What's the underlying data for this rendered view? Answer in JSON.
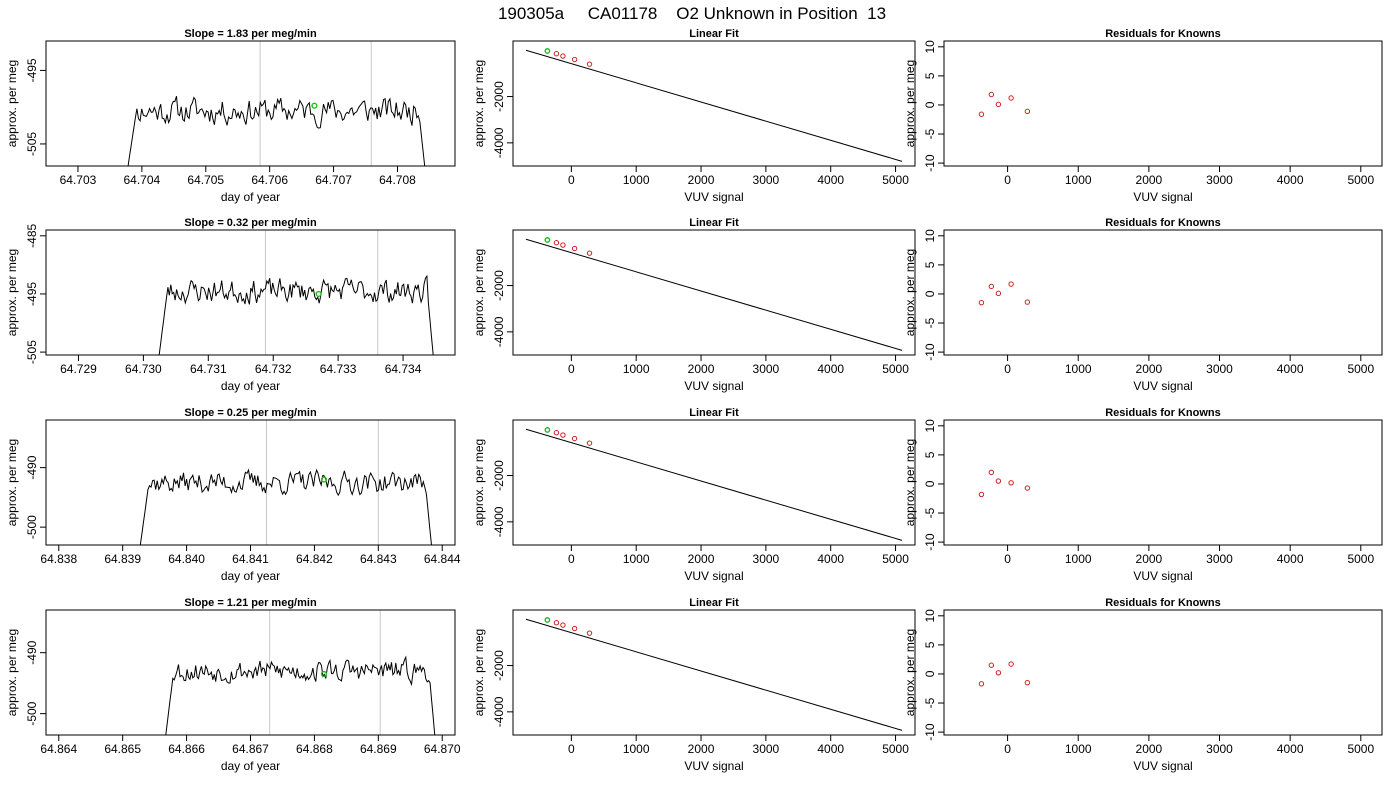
{
  "page_title": "190305a     CA01178    O2 Unknown in Position  13",
  "colors": {
    "trace": "#000000",
    "gridline": "#c8c8c8",
    "unknown_point": "#22bb22",
    "residual_point": "#cc2222",
    "known_point": "#cc2222"
  },
  "chart_data": [
    {
      "type": "line",
      "row": 1,
      "title": "Slope =  1.83  per meg/min",
      "xlabel": "day of year",
      "ylabel": "approx. per meg",
      "xlim": [
        64.7025,
        64.7089
      ],
      "ylim": [
        -508,
        -491
      ],
      "xticks": [
        64.703,
        64.704,
        64.705,
        64.706,
        64.707,
        64.708
      ],
      "xtick_labels": [
        "64.703",
        "64.704",
        "64.705",
        "64.706",
        "64.707",
        "64.708"
      ],
      "yticks": [
        -505,
        -495
      ],
      "ytick_labels": [
        "-505",
        "-495"
      ],
      "vlines": [
        64.70585,
        64.70759
      ],
      "trace_start": 64.70375,
      "trace_end": 64.70845,
      "baseline": -500.5,
      "amplitude": 1.9,
      "seed": 11,
      "unknown_points": [
        {
          "x": 64.7067,
          "y": -499.8
        }
      ]
    },
    {
      "type": "scatter",
      "row": 1,
      "title": "Linear Fit",
      "xlabel": "VUV signal",
      "ylabel": "approx. per meg",
      "xlim": [
        -900,
        5300
      ],
      "ylim": [
        -5000,
        400
      ],
      "xticks": [
        0,
        1000,
        2000,
        3000,
        4000,
        5000
      ],
      "xtick_labels": [
        "0",
        "1000",
        "2000",
        "3000",
        "4000",
        "5000"
      ],
      "yticks": [
        -4000,
        -2000
      ],
      "ytick_labels": [
        "-4000",
        "-2000"
      ],
      "fit_line": [
        [
          -700,
          0
        ],
        [
          5100,
          -4800
        ]
      ],
      "known_points": [
        [
          -230,
          -150
        ],
        [
          -130,
          -250
        ],
        [
          50,
          -400
        ],
        [
          280,
          -600
        ]
      ],
      "unknown_points": [
        [
          -370,
          -30
        ]
      ]
    },
    {
      "type": "scatter",
      "row": 1,
      "title": "Residuals for Knowns",
      "xlabel": "VUV signal",
      "ylabel": "approx. per meg",
      "xlim": [
        -900,
        5300
      ],
      "ylim": [
        -10.5,
        11
      ],
      "xticks": [
        0,
        1000,
        2000,
        3000,
        4000,
        5000
      ],
      "xtick_labels": [
        "0",
        "1000",
        "2000",
        "3000",
        "4000",
        "5000"
      ],
      "yticks": [
        -10,
        -5,
        0,
        5,
        10
      ],
      "ytick_labels": [
        "-10",
        "-5",
        "0",
        "5",
        "10"
      ],
      "residuals": [
        [
          -370,
          -1.6
        ],
        [
          -230,
          1.8
        ],
        [
          -130,
          0.1
        ],
        [
          50,
          1.2
        ],
        [
          280,
          -1.1
        ]
      ]
    },
    {
      "type": "line",
      "row": 2,
      "title": "Slope =  0.32  per meg/min",
      "xlabel": "day of year",
      "ylabel": "approx. per meg",
      "xlim": [
        64.7285,
        64.7348
      ],
      "ylim": [
        -505.5,
        -484
      ],
      "xticks": [
        64.729,
        64.73,
        64.731,
        64.732,
        64.733,
        64.734
      ],
      "xtick_labels": [
        "64.729",
        "64.730",
        "64.731",
        "64.732",
        "64.733",
        "64.734"
      ],
      "yticks": [
        -505,
        -495,
        -485
      ],
      "ytick_labels": [
        "-505",
        "-495",
        "-485"
      ],
      "vlines": [
        64.73188,
        64.73361
      ],
      "trace_start": 64.73022,
      "trace_end": 64.73448,
      "baseline": -494.5,
      "amplitude": 2.2,
      "seed": 23,
      "unknown_points": [
        {
          "x": 64.7327,
          "y": -495.0
        }
      ]
    },
    {
      "type": "scatter",
      "row": 2,
      "title": "Linear Fit",
      "xlabel": "VUV signal",
      "ylabel": "approx. per meg",
      "xlim": [
        -900,
        5300
      ],
      "ylim": [
        -5000,
        400
      ],
      "xticks": [
        0,
        1000,
        2000,
        3000,
        4000,
        5000
      ],
      "xtick_labels": [
        "0",
        "1000",
        "2000",
        "3000",
        "4000",
        "5000"
      ],
      "yticks": [
        -4000,
        -2000
      ],
      "ytick_labels": [
        "-4000",
        "-2000"
      ],
      "fit_line": [
        [
          -700,
          0
        ],
        [
          5100,
          -4800
        ]
      ],
      "known_points": [
        [
          -230,
          -150
        ],
        [
          -130,
          -250
        ],
        [
          50,
          -400
        ],
        [
          280,
          -600
        ]
      ],
      "unknown_points": [
        [
          -370,
          -30
        ]
      ]
    },
    {
      "type": "scatter",
      "row": 2,
      "title": "Residuals for Knowns",
      "xlabel": "VUV signal",
      "ylabel": "approx. per meg",
      "xlim": [
        -900,
        5300
      ],
      "ylim": [
        -10.5,
        11
      ],
      "xticks": [
        0,
        1000,
        2000,
        3000,
        4000,
        5000
      ],
      "xtick_labels": [
        "0",
        "1000",
        "2000",
        "3000",
        "4000",
        "5000"
      ],
      "yticks": [
        -10,
        -5,
        0,
        5,
        10
      ],
      "ytick_labels": [
        "-10",
        "-5",
        "0",
        "5",
        "10"
      ],
      "residuals": [
        [
          -370,
          -1.5
        ],
        [
          -230,
          1.3
        ],
        [
          -130,
          0.1
        ],
        [
          50,
          1.7
        ],
        [
          280,
          -1.4
        ]
      ]
    },
    {
      "type": "line",
      "row": 3,
      "title": "Slope =  0.25  per meg/min",
      "xlabel": "day of year",
      "ylabel": "approx. per meg",
      "xlim": [
        64.8378,
        64.8442
      ],
      "ylim": [
        -503,
        -482
      ],
      "xticks": [
        64.838,
        64.839,
        64.84,
        64.841,
        64.842,
        64.843,
        64.844
      ],
      "xtick_labels": [
        "64.838",
        "64.839",
        "64.840",
        "64.841",
        "64.842",
        "64.843",
        "64.844"
      ],
      "yticks": [
        -500,
        -490
      ],
      "ytick_labels": [
        "-500",
        "-490"
      ],
      "vlines": [
        64.84125,
        64.843
      ],
      "trace_start": 64.83925,
      "trace_end": 64.84385,
      "baseline": -492.5,
      "amplitude": 2.0,
      "seed": 37,
      "unknown_points": [
        {
          "x": 64.84215,
          "y": -492.0
        }
      ]
    },
    {
      "type": "scatter",
      "row": 3,
      "title": "Linear Fit",
      "xlabel": "VUV signal",
      "ylabel": "approx. per meg",
      "xlim": [
        -900,
        5300
      ],
      "ylim": [
        -5000,
        400
      ],
      "xticks": [
        0,
        1000,
        2000,
        3000,
        4000,
        5000
      ],
      "xtick_labels": [
        "0",
        "1000",
        "2000",
        "3000",
        "4000",
        "5000"
      ],
      "yticks": [
        -4000,
        -2000
      ],
      "ytick_labels": [
        "-4000",
        "-2000"
      ],
      "fit_line": [
        [
          -700,
          0
        ],
        [
          5100,
          -4800
        ]
      ],
      "known_points": [
        [
          -230,
          -150
        ],
        [
          -130,
          -250
        ],
        [
          50,
          -400
        ],
        [
          280,
          -600
        ]
      ],
      "unknown_points": [
        [
          -370,
          -30
        ]
      ]
    },
    {
      "type": "scatter",
      "row": 3,
      "title": "Residuals for Knowns",
      "xlabel": "VUV signal",
      "ylabel": "approx. per meg",
      "xlim": [
        -900,
        5300
      ],
      "ylim": [
        -10.5,
        11
      ],
      "xticks": [
        0,
        1000,
        2000,
        3000,
        4000,
        5000
      ],
      "xtick_labels": [
        "0",
        "1000",
        "2000",
        "3000",
        "4000",
        "5000"
      ],
      "yticks": [
        -10,
        -5,
        0,
        5,
        10
      ],
      "ytick_labels": [
        "-10",
        "-5",
        "0",
        "5",
        "10"
      ],
      "residuals": [
        [
          -370,
          -1.8
        ],
        [
          -230,
          2.0
        ],
        [
          -130,
          0.5
        ],
        [
          50,
          0.2
        ],
        [
          280,
          -0.7
        ]
      ]
    },
    {
      "type": "line",
      "row": 4,
      "title": "Slope =  1.21  per meg/min",
      "xlabel": "day of year",
      "ylabel": "approx. per meg",
      "xlim": [
        64.8638,
        64.8702
      ],
      "ylim": [
        -503.5,
        -483
      ],
      "xticks": [
        64.864,
        64.865,
        64.866,
        64.867,
        64.868,
        64.869,
        64.87
      ],
      "xtick_labels": [
        "64.864",
        "64.865",
        "64.866",
        "64.867",
        "64.868",
        "64.869",
        "64.870"
      ],
      "yticks": [
        -500,
        -490
      ],
      "ytick_labels": [
        "-500",
        "-490"
      ],
      "vlines": [
        64.8673,
        64.86903
      ],
      "trace_start": 64.86565,
      "trace_end": 64.8699,
      "baseline": -493.0,
      "amplitude": 1.9,
      "seed": 53,
      "unknown_points": [
        {
          "x": 64.86815,
          "y": -493.5
        }
      ]
    },
    {
      "type": "scatter",
      "row": 4,
      "title": "Linear Fit",
      "xlabel": "VUV signal",
      "ylabel": "approx. per meg",
      "xlim": [
        -900,
        5300
      ],
      "ylim": [
        -5000,
        400
      ],
      "xticks": [
        0,
        1000,
        2000,
        3000,
        4000,
        5000
      ],
      "xtick_labels": [
        "0",
        "1000",
        "2000",
        "3000",
        "4000",
        "5000"
      ],
      "yticks": [
        -4000,
        -2000
      ],
      "ytick_labels": [
        "-4000",
        "-2000"
      ],
      "fit_line": [
        [
          -700,
          0
        ],
        [
          5100,
          -4800
        ]
      ],
      "known_points": [
        [
          -230,
          -150
        ],
        [
          -130,
          -250
        ],
        [
          50,
          -400
        ],
        [
          280,
          -600
        ]
      ],
      "unknown_points": [
        [
          -370,
          -30
        ]
      ]
    },
    {
      "type": "scatter",
      "row": 4,
      "title": "Residuals for Knowns",
      "xlabel": "VUV signal",
      "ylabel": "approx. per meg",
      "xlim": [
        -900,
        5300
      ],
      "ylim": [
        -10.5,
        11
      ],
      "xticks": [
        0,
        1000,
        2000,
        3000,
        4000,
        5000
      ],
      "xtick_labels": [
        "0",
        "1000",
        "2000",
        "3000",
        "4000",
        "5000"
      ],
      "yticks": [
        -10,
        -5,
        0,
        5,
        10
      ],
      "ytick_labels": [
        "-10",
        "-5",
        "0",
        "5",
        "10"
      ],
      "residuals": [
        [
          -370,
          -1.7
        ],
        [
          -230,
          1.5
        ],
        [
          -130,
          0.2
        ],
        [
          50,
          1.7
        ],
        [
          280,
          -1.5
        ]
      ]
    }
  ]
}
